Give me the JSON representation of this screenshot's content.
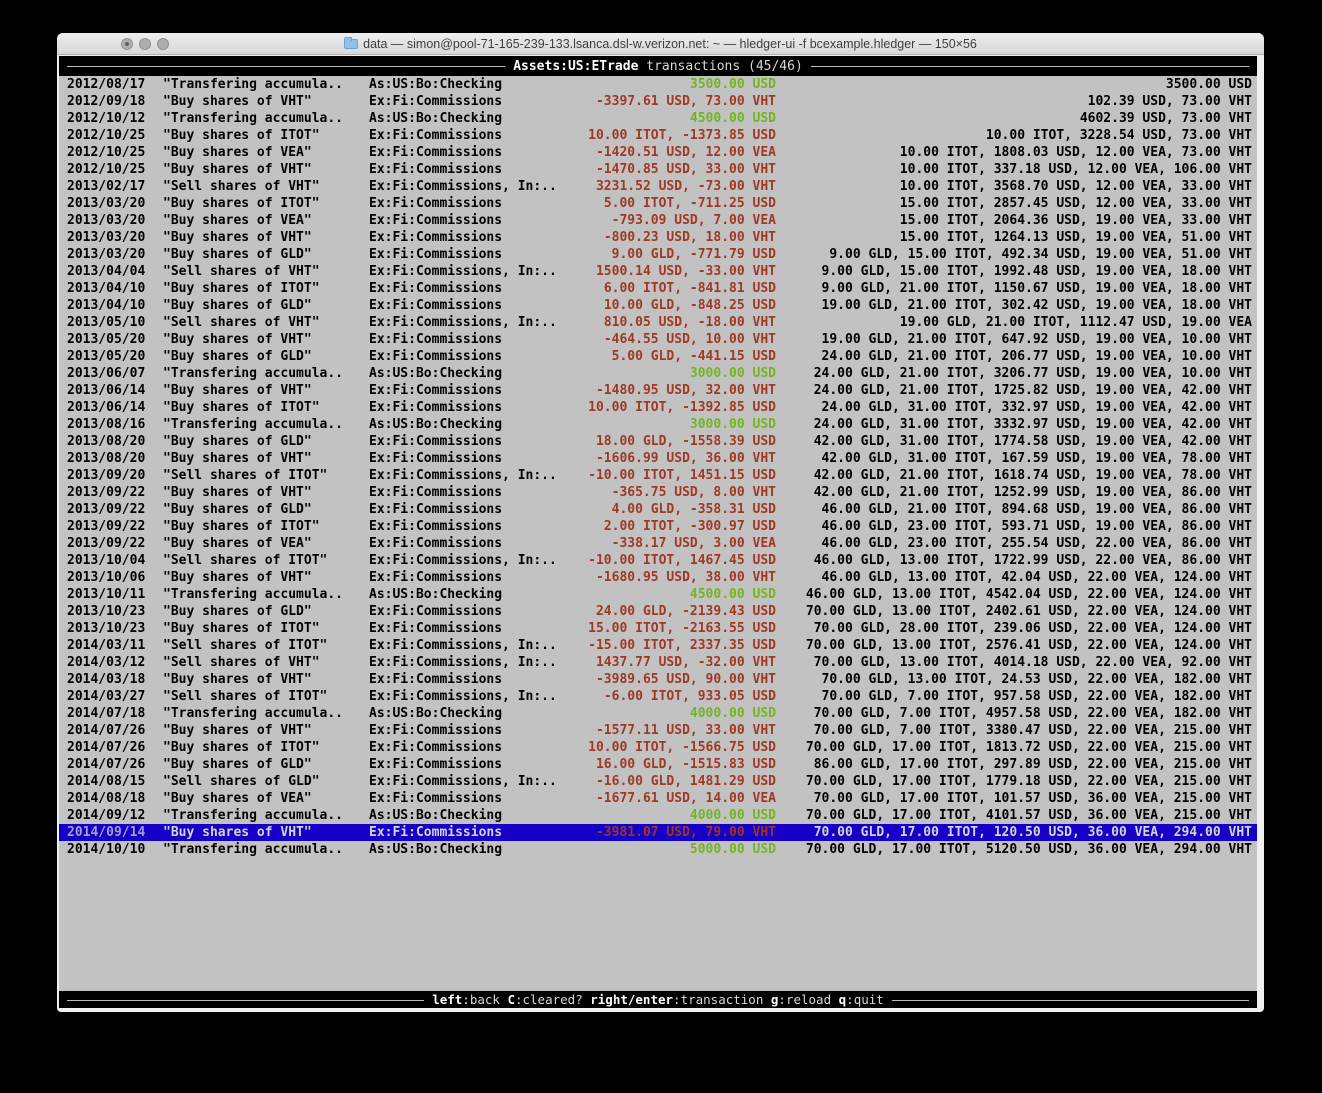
{
  "palette": {
    "terminal_bg": "#c2c2c2",
    "bar_bg": "#000000",
    "negative_red": "#9f3824",
    "positive_green": "#72b51e",
    "selected_row_bg": "#1500c8"
  },
  "window": {
    "title": "data — simon@pool-71-165-239-133.lsanca.dsl-w.verizon.net: ~ — hledger-ui -f bcexample.hledger — 150×56",
    "buttons": [
      "close",
      "minimize",
      "zoom"
    ]
  },
  "header": {
    "account": "Assets:US:ETrade",
    "suffix": " transactions (45/46)"
  },
  "footer": {
    "hints": [
      {
        "key": "left",
        "desc": ":back"
      },
      {
        "key": "C",
        "desc": ":cleared?"
      },
      {
        "key": "right/enter",
        "desc": ":transaction"
      },
      {
        "key": "g",
        "desc": ":reload"
      },
      {
        "key": "q",
        "desc": ":quit"
      }
    ]
  },
  "transactions": [
    {
      "date": "2012/08/17",
      "description": "\"Transfering accumula..",
      "account": "As:US:Bo:Checking",
      "amount": "3500.00 USD",
      "amount_color": "green",
      "balance": "3500.00 USD",
      "selected": false
    },
    {
      "date": "2012/09/18",
      "description": "\"Buy shares of VHT\"",
      "account": "Ex:Fi:Commissions",
      "amount": "-3397.61 USD, 73.00 VHT",
      "amount_color": "red",
      "balance": "102.39 USD, 73.00 VHT",
      "selected": false
    },
    {
      "date": "2012/10/12",
      "description": "\"Transfering accumula..",
      "account": "As:US:Bo:Checking",
      "amount": "4500.00 USD",
      "amount_color": "green",
      "balance": "4602.39 USD, 73.00 VHT",
      "selected": false
    },
    {
      "date": "2012/10/25",
      "description": "\"Buy shares of ITOT\"",
      "account": "Ex:Fi:Commissions",
      "amount": "10.00 ITOT, -1373.85 USD",
      "amount_color": "red",
      "balance": "10.00 ITOT, 3228.54 USD, 73.00 VHT",
      "selected": false
    },
    {
      "date": "2012/10/25",
      "description": "\"Buy shares of VEA\"",
      "account": "Ex:Fi:Commissions",
      "amount": "-1420.51 USD, 12.00 VEA",
      "amount_color": "red",
      "balance": "10.00 ITOT, 1808.03 USD, 12.00 VEA, 73.00 VHT",
      "selected": false
    },
    {
      "date": "2012/10/25",
      "description": "\"Buy shares of VHT\"",
      "account": "Ex:Fi:Commissions",
      "amount": "-1470.85 USD, 33.00 VHT",
      "amount_color": "red",
      "balance": "10.00 ITOT, 337.18 USD, 12.00 VEA, 106.00 VHT",
      "selected": false
    },
    {
      "date": "2013/02/17",
      "description": "\"Sell shares of VHT\"",
      "account": "Ex:Fi:Commissions, In:..",
      "amount": "3231.52 USD, -73.00 VHT",
      "amount_color": "red",
      "balance": "10.00 ITOT, 3568.70 USD, 12.00 VEA, 33.00 VHT",
      "selected": false
    },
    {
      "date": "2013/03/20",
      "description": "\"Buy shares of ITOT\"",
      "account": "Ex:Fi:Commissions",
      "amount": "5.00 ITOT, -711.25 USD",
      "amount_color": "red",
      "balance": "15.00 ITOT, 2857.45 USD, 12.00 VEA, 33.00 VHT",
      "selected": false
    },
    {
      "date": "2013/03/20",
      "description": "\"Buy shares of VEA\"",
      "account": "Ex:Fi:Commissions",
      "amount": "-793.09 USD, 7.00 VEA",
      "amount_color": "red",
      "balance": "15.00 ITOT, 2064.36 USD, 19.00 VEA, 33.00 VHT",
      "selected": false
    },
    {
      "date": "2013/03/20",
      "description": "\"Buy shares of VHT\"",
      "account": "Ex:Fi:Commissions",
      "amount": "-800.23 USD, 18.00 VHT",
      "amount_color": "red",
      "balance": "15.00 ITOT, 1264.13 USD, 19.00 VEA, 51.00 VHT",
      "selected": false
    },
    {
      "date": "2013/03/20",
      "description": "\"Buy shares of GLD\"",
      "account": "Ex:Fi:Commissions",
      "amount": "9.00 GLD, -771.79 USD",
      "amount_color": "red",
      "balance": "9.00 GLD, 15.00 ITOT, 492.34 USD, 19.00 VEA, 51.00 VHT",
      "selected": false
    },
    {
      "date": "2013/04/04",
      "description": "\"Sell shares of VHT\"",
      "account": "Ex:Fi:Commissions, In:..",
      "amount": "1500.14 USD, -33.00 VHT",
      "amount_color": "red",
      "balance": "9.00 GLD, 15.00 ITOT, 1992.48 USD, 19.00 VEA, 18.00 VHT",
      "selected": false
    },
    {
      "date": "2013/04/10",
      "description": "\"Buy shares of ITOT\"",
      "account": "Ex:Fi:Commissions",
      "amount": "6.00 ITOT, -841.81 USD",
      "amount_color": "red",
      "balance": "9.00 GLD, 21.00 ITOT, 1150.67 USD, 19.00 VEA, 18.00 VHT",
      "selected": false
    },
    {
      "date": "2013/04/10",
      "description": "\"Buy shares of GLD\"",
      "account": "Ex:Fi:Commissions",
      "amount": "10.00 GLD, -848.25 USD",
      "amount_color": "red",
      "balance": "19.00 GLD, 21.00 ITOT, 302.42 USD, 19.00 VEA, 18.00 VHT",
      "selected": false
    },
    {
      "date": "2013/05/10",
      "description": "\"Sell shares of VHT\"",
      "account": "Ex:Fi:Commissions, In:..",
      "amount": "810.05 USD, -18.00 VHT",
      "amount_color": "red",
      "balance": "19.00 GLD, 21.00 ITOT, 1112.47 USD, 19.00 VEA",
      "selected": false
    },
    {
      "date": "2013/05/20",
      "description": "\"Buy shares of VHT\"",
      "account": "Ex:Fi:Commissions",
      "amount": "-464.55 USD, 10.00 VHT",
      "amount_color": "red",
      "balance": "19.00 GLD, 21.00 ITOT, 647.92 USD, 19.00 VEA, 10.00 VHT",
      "selected": false
    },
    {
      "date": "2013/05/20",
      "description": "\"Buy shares of GLD\"",
      "account": "Ex:Fi:Commissions",
      "amount": "5.00 GLD, -441.15 USD",
      "amount_color": "red",
      "balance": "24.00 GLD, 21.00 ITOT, 206.77 USD, 19.00 VEA, 10.00 VHT",
      "selected": false
    },
    {
      "date": "2013/06/07",
      "description": "\"Transfering accumula..",
      "account": "As:US:Bo:Checking",
      "amount": "3000.00 USD",
      "amount_color": "green",
      "balance": "24.00 GLD, 21.00 ITOT, 3206.77 USD, 19.00 VEA, 10.00 VHT",
      "selected": false
    },
    {
      "date": "2013/06/14",
      "description": "\"Buy shares of VHT\"",
      "account": "Ex:Fi:Commissions",
      "amount": "-1480.95 USD, 32.00 VHT",
      "amount_color": "red",
      "balance": "24.00 GLD, 21.00 ITOT, 1725.82 USD, 19.00 VEA, 42.00 VHT",
      "selected": false
    },
    {
      "date": "2013/06/14",
      "description": "\"Buy shares of ITOT\"",
      "account": "Ex:Fi:Commissions",
      "amount": "10.00 ITOT, -1392.85 USD",
      "amount_color": "red",
      "balance": "24.00 GLD, 31.00 ITOT, 332.97 USD, 19.00 VEA, 42.00 VHT",
      "selected": false
    },
    {
      "date": "2013/08/16",
      "description": "\"Transfering accumula..",
      "account": "As:US:Bo:Checking",
      "amount": "3000.00 USD",
      "amount_color": "green",
      "balance": "24.00 GLD, 31.00 ITOT, 3332.97 USD, 19.00 VEA, 42.00 VHT",
      "selected": false
    },
    {
      "date": "2013/08/20",
      "description": "\"Buy shares of GLD\"",
      "account": "Ex:Fi:Commissions",
      "amount": "18.00 GLD, -1558.39 USD",
      "amount_color": "red",
      "balance": "42.00 GLD, 31.00 ITOT, 1774.58 USD, 19.00 VEA, 42.00 VHT",
      "selected": false
    },
    {
      "date": "2013/08/20",
      "description": "\"Buy shares of VHT\"",
      "account": "Ex:Fi:Commissions",
      "amount": "-1606.99 USD, 36.00 VHT",
      "amount_color": "red",
      "balance": "42.00 GLD, 31.00 ITOT, 167.59 USD, 19.00 VEA, 78.00 VHT",
      "selected": false
    },
    {
      "date": "2013/09/20",
      "description": "\"Sell shares of ITOT\"",
      "account": "Ex:Fi:Commissions, In:..",
      "amount": "-10.00 ITOT, 1451.15 USD",
      "amount_color": "red",
      "balance": "42.00 GLD, 21.00 ITOT, 1618.74 USD, 19.00 VEA, 78.00 VHT",
      "selected": false
    },
    {
      "date": "2013/09/22",
      "description": "\"Buy shares of VHT\"",
      "account": "Ex:Fi:Commissions",
      "amount": "-365.75 USD, 8.00 VHT",
      "amount_color": "red",
      "balance": "42.00 GLD, 21.00 ITOT, 1252.99 USD, 19.00 VEA, 86.00 VHT",
      "selected": false
    },
    {
      "date": "2013/09/22",
      "description": "\"Buy shares of GLD\"",
      "account": "Ex:Fi:Commissions",
      "amount": "4.00 GLD, -358.31 USD",
      "amount_color": "red",
      "balance": "46.00 GLD, 21.00 ITOT, 894.68 USD, 19.00 VEA, 86.00 VHT",
      "selected": false
    },
    {
      "date": "2013/09/22",
      "description": "\"Buy shares of ITOT\"",
      "account": "Ex:Fi:Commissions",
      "amount": "2.00 ITOT, -300.97 USD",
      "amount_color": "red",
      "balance": "46.00 GLD, 23.00 ITOT, 593.71 USD, 19.00 VEA, 86.00 VHT",
      "selected": false
    },
    {
      "date": "2013/09/22",
      "description": "\"Buy shares of VEA\"",
      "account": "Ex:Fi:Commissions",
      "amount": "-338.17 USD, 3.00 VEA",
      "amount_color": "red",
      "balance": "46.00 GLD, 23.00 ITOT, 255.54 USD, 22.00 VEA, 86.00 VHT",
      "selected": false
    },
    {
      "date": "2013/10/04",
      "description": "\"Sell shares of ITOT\"",
      "account": "Ex:Fi:Commissions, In:..",
      "amount": "-10.00 ITOT, 1467.45 USD",
      "amount_color": "red",
      "balance": "46.00 GLD, 13.00 ITOT, 1722.99 USD, 22.00 VEA, 86.00 VHT",
      "selected": false
    },
    {
      "date": "2013/10/06",
      "description": "\"Buy shares of VHT\"",
      "account": "Ex:Fi:Commissions",
      "amount": "-1680.95 USD, 38.00 VHT",
      "amount_color": "red",
      "balance": "46.00 GLD, 13.00 ITOT, 42.04 USD, 22.00 VEA, 124.00 VHT",
      "selected": false
    },
    {
      "date": "2013/10/11",
      "description": "\"Transfering accumula..",
      "account": "As:US:Bo:Checking",
      "amount": "4500.00 USD",
      "amount_color": "green",
      "balance": "46.00 GLD, 13.00 ITOT, 4542.04 USD, 22.00 VEA, 124.00 VHT",
      "selected": false
    },
    {
      "date": "2013/10/23",
      "description": "\"Buy shares of GLD\"",
      "account": "Ex:Fi:Commissions",
      "amount": "24.00 GLD, -2139.43 USD",
      "amount_color": "red",
      "balance": "70.00 GLD, 13.00 ITOT, 2402.61 USD, 22.00 VEA, 124.00 VHT",
      "selected": false
    },
    {
      "date": "2013/10/23",
      "description": "\"Buy shares of ITOT\"",
      "account": "Ex:Fi:Commissions",
      "amount": "15.00 ITOT, -2163.55 USD",
      "amount_color": "red",
      "balance": "70.00 GLD, 28.00 ITOT, 239.06 USD, 22.00 VEA, 124.00 VHT",
      "selected": false
    },
    {
      "date": "2014/03/11",
      "description": "\"Sell shares of ITOT\"",
      "account": "Ex:Fi:Commissions, In:..",
      "amount": "-15.00 ITOT, 2337.35 USD",
      "amount_color": "red",
      "balance": "70.00 GLD, 13.00 ITOT, 2576.41 USD, 22.00 VEA, 124.00 VHT",
      "selected": false
    },
    {
      "date": "2014/03/12",
      "description": "\"Sell shares of VHT\"",
      "account": "Ex:Fi:Commissions, In:..",
      "amount": "1437.77 USD, -32.00 VHT",
      "amount_color": "red",
      "balance": "70.00 GLD, 13.00 ITOT, 4014.18 USD, 22.00 VEA, 92.00 VHT",
      "selected": false
    },
    {
      "date": "2014/03/18",
      "description": "\"Buy shares of VHT\"",
      "account": "Ex:Fi:Commissions",
      "amount": "-3989.65 USD, 90.00 VHT",
      "amount_color": "red",
      "balance": "70.00 GLD, 13.00 ITOT, 24.53 USD, 22.00 VEA, 182.00 VHT",
      "selected": false
    },
    {
      "date": "2014/03/27",
      "description": "\"Sell shares of ITOT\"",
      "account": "Ex:Fi:Commissions, In:..",
      "amount": "-6.00 ITOT, 933.05 USD",
      "amount_color": "red",
      "balance": "70.00 GLD, 7.00 ITOT, 957.58 USD, 22.00 VEA, 182.00 VHT",
      "selected": false
    },
    {
      "date": "2014/07/18",
      "description": "\"Transfering accumula..",
      "account": "As:US:Bo:Checking",
      "amount": "4000.00 USD",
      "amount_color": "green",
      "balance": "70.00 GLD, 7.00 ITOT, 4957.58 USD, 22.00 VEA, 182.00 VHT",
      "selected": false
    },
    {
      "date": "2014/07/26",
      "description": "\"Buy shares of VHT\"",
      "account": "Ex:Fi:Commissions",
      "amount": "-1577.11 USD, 33.00 VHT",
      "amount_color": "red",
      "balance": "70.00 GLD, 7.00 ITOT, 3380.47 USD, 22.00 VEA, 215.00 VHT",
      "selected": false
    },
    {
      "date": "2014/07/26",
      "description": "\"Buy shares of ITOT\"",
      "account": "Ex:Fi:Commissions",
      "amount": "10.00 ITOT, -1566.75 USD",
      "amount_color": "red",
      "balance": "70.00 GLD, 17.00 ITOT, 1813.72 USD, 22.00 VEA, 215.00 VHT",
      "selected": false
    },
    {
      "date": "2014/07/26",
      "description": "\"Buy shares of GLD\"",
      "account": "Ex:Fi:Commissions",
      "amount": "16.00 GLD, -1515.83 USD",
      "amount_color": "red",
      "balance": "86.00 GLD, 17.00 ITOT, 297.89 USD, 22.00 VEA, 215.00 VHT",
      "selected": false
    },
    {
      "date": "2014/08/15",
      "description": "\"Sell shares of GLD\"",
      "account": "Ex:Fi:Commissions, In:..",
      "amount": "-16.00 GLD, 1481.29 USD",
      "amount_color": "red",
      "balance": "70.00 GLD, 17.00 ITOT, 1779.18 USD, 22.00 VEA, 215.00 VHT",
      "selected": false
    },
    {
      "date": "2014/08/18",
      "description": "\"Buy shares of VEA\"",
      "account": "Ex:Fi:Commissions",
      "amount": "-1677.61 USD, 14.00 VEA",
      "amount_color": "red",
      "balance": "70.00 GLD, 17.00 ITOT, 101.57 USD, 36.00 VEA, 215.00 VHT",
      "selected": false
    },
    {
      "date": "2014/09/12",
      "description": "\"Transfering accumula..",
      "account": "As:US:Bo:Checking",
      "amount": "4000.00 USD",
      "amount_color": "green",
      "balance": "70.00 GLD, 17.00 ITOT, 4101.57 USD, 36.00 VEA, 215.00 VHT",
      "selected": false
    },
    {
      "date": "2014/09/14",
      "description": "\"Buy shares of VHT\"",
      "account": "Ex:Fi:Commissions",
      "amount": "-3981.07 USD, 79.00 VHT",
      "amount_color": "red",
      "balance": "70.00 GLD, 17.00 ITOT, 120.50 USD, 36.00 VEA, 294.00 VHT",
      "selected": true
    },
    {
      "date": "2014/10/10",
      "description": "\"Transfering accumula..",
      "account": "As:US:Bo:Checking",
      "amount": "5000.00 USD",
      "amount_color": "green",
      "balance": "70.00 GLD, 17.00 ITOT, 5120.50 USD, 36.00 VEA, 294.00 VHT",
      "selected": false
    }
  ]
}
